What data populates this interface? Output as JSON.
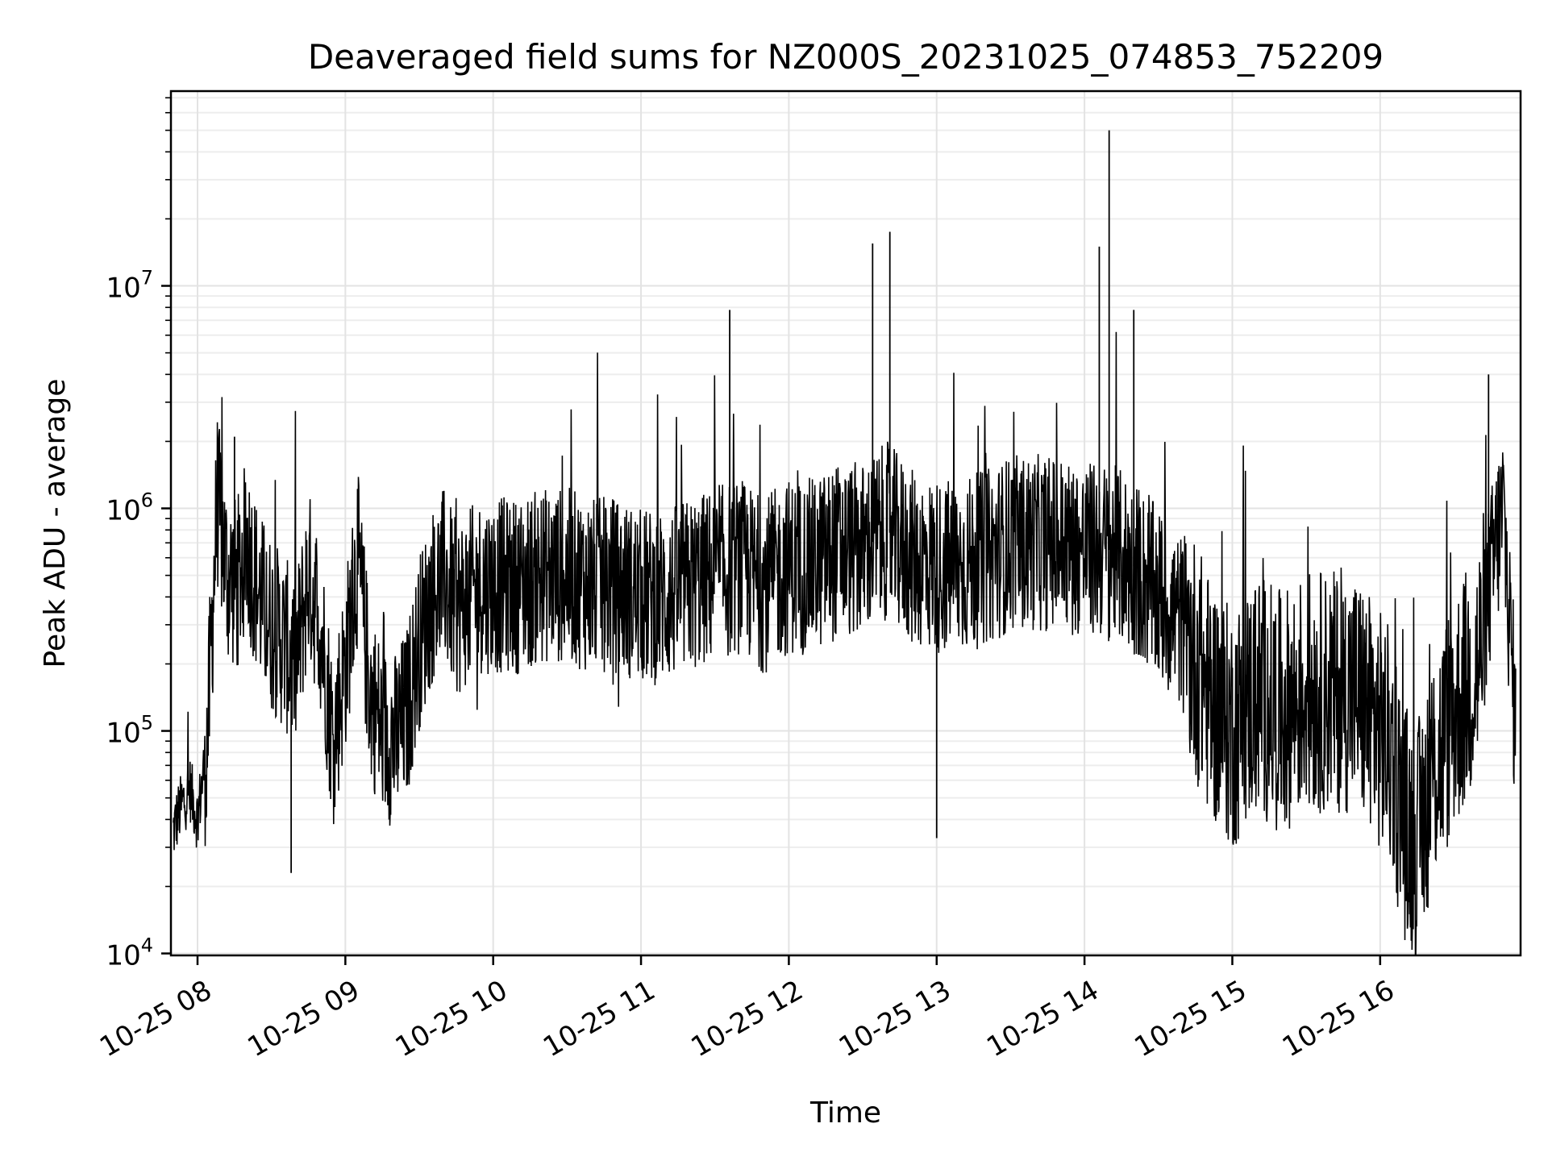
{
  "chart_data": {
    "type": "line",
    "title": "Deaveraged field sums for NZ000S_20231025_074853_752209",
    "xlabel": "Time",
    "ylabel": "Peak ADU - average",
    "yscale": "log",
    "ylim": [
      9800,
      75000000
    ],
    "xlim_hours": [
      7.82,
      16.95
    ],
    "x_ticks": [
      {
        "hour": 8,
        "label": "10-25 08"
      },
      {
        "hour": 9,
        "label": "10-25 09"
      },
      {
        "hour": 10,
        "label": "10-25 10"
      },
      {
        "hour": 11,
        "label": "10-25 11"
      },
      {
        "hour": 12,
        "label": "10-25 12"
      },
      {
        "hour": 13,
        "label": "10-25 13"
      },
      {
        "hour": 14,
        "label": "10-25 14"
      },
      {
        "hour": 15,
        "label": "10-25 15"
      },
      {
        "hour": 16,
        "label": "10-25 16"
      }
    ],
    "y_ticks": [
      {
        "value": 10000,
        "base": "10",
        "exp": "4"
      },
      {
        "value": 100000,
        "base": "10",
        "exp": "5"
      },
      {
        "value": 1000000,
        "base": "10",
        "exp": "6"
      },
      {
        "value": 10000000,
        "base": "10",
        "exp": "7"
      }
    ],
    "grid": true,
    "line_color": "#000000",
    "series": [
      {
        "x": [
          "07:50",
          "07:53",
          "07:57",
          "08:00",
          "08:04",
          "08:08",
          "08:12",
          "08:16",
          "08:20",
          "08:25",
          "08:30",
          "08:35",
          "08:40",
          "08:45",
          "08:50",
          "08:55",
          "09:00",
          "09:05",
          "09:10",
          "09:15",
          "09:20",
          "09:25",
          "09:30",
          "09:35",
          "09:40",
          "09:45",
          "09:50",
          "09:55",
          "10:00",
          "10:10",
          "10:20",
          "10:30",
          "10:40",
          "10:50",
          "11:00",
          "11:10",
          "11:20",
          "11:30",
          "11:40",
          "11:50",
          "12:00",
          "12:10",
          "12:20",
          "12:30",
          "12:40",
          "12:50",
          "13:00",
          "13:10",
          "13:20",
          "13:30",
          "13:40",
          "13:50",
          "14:00",
          "14:10",
          "14:20",
          "14:30",
          "14:40",
          "14:50",
          "15:00",
          "15:10",
          "15:20",
          "15:30",
          "15:40",
          "15:50",
          "16:00",
          "16:05",
          "16:10",
          "16:15",
          "16:20",
          "16:30",
          "16:40",
          "16:45",
          "16:50",
          "16:55"
        ],
        "y": [
          35000,
          45000,
          55000,
          40000,
          90000,
          1100000,
          500000,
          450000,
          700000,
          400000,
          300000,
          250000,
          200000,
          500000,
          300000,
          90000,
          200000,
          600000,
          150000,
          100000,
          90000,
          120000,
          250000,
          400000,
          500000,
          350000,
          400000,
          450000,
          450000,
          450000,
          500000,
          500000,
          450000,
          450000,
          400000,
          400000,
          450000,
          500000,
          550000,
          450000,
          550000,
          550000,
          650000,
          650000,
          800000,
          600000,
          550000,
          550000,
          600000,
          700000,
          700000,
          700000,
          650000,
          650000,
          550000,
          400000,
          300000,
          150000,
          100000,
          150000,
          120000,
          150000,
          150000,
          150000,
          100000,
          80000,
          40000,
          30000,
          60000,
          120000,
          200000,
          500000,
          1000000,
          100000
        ],
        "spikes": [
          {
            "x": "08:15",
            "y": 2100000
          },
          {
            "x": "08:38",
            "y": 23000
          },
          {
            "x": "11:36",
            "y": 7800000
          },
          {
            "x": "12:34",
            "y": 15500000
          },
          {
            "x": "12:41",
            "y": 17500000
          },
          {
            "x": "13:00",
            "y": 33000
          },
          {
            "x": "14:06",
            "y": 15000000
          },
          {
            "x": "14:10",
            "y": 50000000
          },
          {
            "x": "14:20",
            "y": 7800000
          },
          {
            "x": "16:12",
            "y": 15000
          },
          {
            "x": "16:44",
            "y": 4000000
          }
        ]
      }
    ]
  }
}
